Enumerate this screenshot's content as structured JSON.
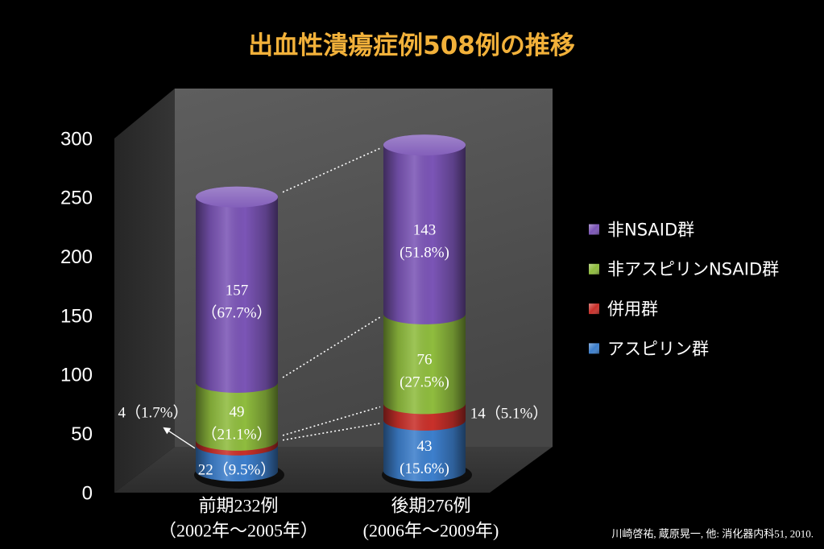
{
  "colors": {
    "background": "#000000",
    "title": "#f2b13a",
    "text": "#ffffff"
  },
  "footnote": "川崎啓祐, 蔵原晃一, 他: 消化器内科51, 2010.",
  "chart_data": {
    "type": "bar",
    "stacked": true,
    "style": "3d-cylinder",
    "title": "出血性潰瘍症例508例の推移",
    "categories": [
      "前期232例",
      "後期276例"
    ],
    "category_sublabels": [
      "（2002年～2005年）",
      "(2006年～2009年)"
    ],
    "ylim": [
      0,
      300
    ],
    "yticks": [
      0,
      50,
      100,
      150,
      200,
      250,
      300
    ],
    "grid": false,
    "legend_position": "right",
    "series": [
      {
        "name": "アスピリン群",
        "color": "#3d7fcc",
        "values": [
          22,
          43
        ],
        "percents": [
          9.5,
          15.6
        ],
        "labels": [
          [
            "22（9.5%）"
          ],
          [
            "43",
            "(15.6%)"
          ]
        ]
      },
      {
        "name": "併用群",
        "color": "#c9302a",
        "values": [
          4,
          14
        ],
        "percents": [
          1.7,
          5.1
        ],
        "labels": [
          [
            "4（1.7%）"
          ],
          [
            "14（5.1%）"
          ]
        ]
      },
      {
        "name": "非アスピリンNSAID群",
        "color": "#8fbc3e",
        "values": [
          49,
          76
        ],
        "percents": [
          21.1,
          27.5
        ],
        "labels": [
          [
            "49",
            "（21.1%）"
          ],
          [
            "76",
            "(27.5%)"
          ]
        ]
      },
      {
        "name": "非NSAID群",
        "color": "#7b55b6",
        "values": [
          157,
          143
        ],
        "percents": [
          67.7,
          51.8
        ],
        "labels": [
          [
            "157",
            "（67.7%）"
          ],
          [
            "143",
            "(51.8%)"
          ]
        ]
      }
    ]
  }
}
